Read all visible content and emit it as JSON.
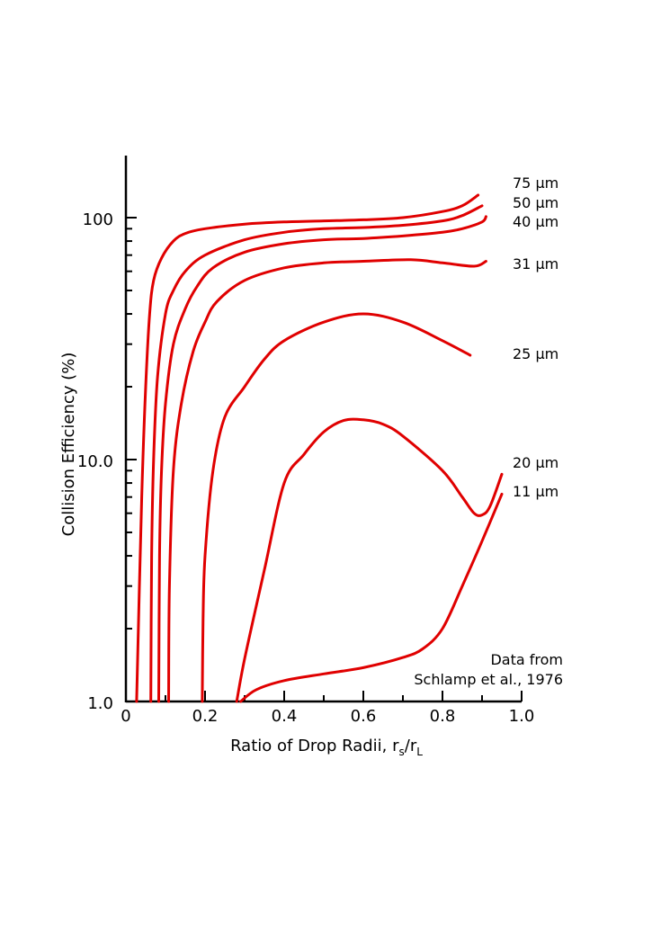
{
  "chart_data": {
    "type": "line",
    "xlabel_main": "Ratio of Drop Radii, r",
    "xlabel_sub_s": "s",
    "xlabel_slash": "/r",
    "xlabel_sub_L": "L",
    "ylabel": "Collision Efficiency (%)",
    "xlim": [
      0,
      1.0
    ],
    "ylim": [
      1.0,
      180
    ],
    "yscale": "log",
    "xticks": [
      "0",
      "0.2",
      "0.4",
      "0.6",
      "0.8",
      "1.0"
    ],
    "yticks": [
      "1.0",
      "10.0",
      "100"
    ],
    "line_color": "#e00000",
    "annotation_line1": "Data from",
    "annotation_line2": "Schlamp et al., 1976",
    "series": [
      {
        "name": "75 µm",
        "x": [
          0.027,
          0.04,
          0.05,
          0.06,
          0.07,
          0.09,
          0.12,
          0.15,
          0.2,
          0.3,
          0.4,
          0.5,
          0.6,
          0.7,
          0.8,
          0.85,
          0.89
        ],
        "y": [
          1.0,
          7,
          20,
          40,
          55,
          68,
          80,
          86,
          90,
          94,
          96,
          97,
          98,
          100,
          106,
          112,
          124
        ]
      },
      {
        "name": "50 µm",
        "x": [
          0.063,
          0.065,
          0.07,
          0.08,
          0.1,
          0.12,
          0.15,
          0.2,
          0.3,
          0.4,
          0.5,
          0.6,
          0.7,
          0.8,
          0.85,
          0.9
        ],
        "y": [
          1.0,
          4,
          10,
          22,
          40,
          50,
          60,
          70,
          81,
          87,
          90,
          91,
          93,
          97,
          102,
          112
        ]
      },
      {
        "name": "40 µm",
        "x": [
          0.083,
          0.085,
          0.09,
          0.1,
          0.12,
          0.15,
          0.18,
          0.22,
          0.3,
          0.4,
          0.5,
          0.6,
          0.7,
          0.8,
          0.85,
          0.9,
          0.91
        ],
        "y": [
          1.0,
          4,
          9,
          17,
          30,
          42,
          52,
          62,
          72,
          78,
          81,
          82,
          84,
          87,
          90,
          96,
          101
        ]
      },
      {
        "name": "31 µm",
        "x": [
          0.108,
          0.11,
          0.12,
          0.14,
          0.17,
          0.2,
          0.23,
          0.3,
          0.4,
          0.5,
          0.6,
          0.72,
          0.8,
          0.88,
          0.91
        ],
        "y": [
          1.0,
          3,
          9,
          17,
          28,
          37,
          45,
          55,
          62,
          65,
          66,
          67,
          65,
          63,
          66
        ]
      },
      {
        "name": "25 µm",
        "x": [
          0.193,
          0.195,
          0.2,
          0.22,
          0.25,
          0.3,
          0.35,
          0.4,
          0.5,
          0.6,
          0.7,
          0.8,
          0.87
        ],
        "y": [
          1.0,
          2.2,
          4,
          9,
          15,
          20,
          26,
          31,
          37,
          40,
          37,
          31,
          27
        ]
      },
      {
        "name": "20 µm",
        "x": [
          0.28,
          0.3,
          0.35,
          0.4,
          0.45,
          0.5,
          0.55,
          0.6,
          0.65,
          0.7,
          0.8,
          0.85,
          0.88,
          0.9,
          0.92,
          0.95
        ],
        "y": [
          1.0,
          1.5,
          3.5,
          8,
          10.5,
          13,
          14.5,
          14.6,
          14,
          12.5,
          9,
          7,
          6,
          5.9,
          6.4,
          8.7
        ]
      },
      {
        "name": "11 µm",
        "x": [
          0.29,
          0.33,
          0.4,
          0.5,
          0.6,
          0.7,
          0.75,
          0.8,
          0.85,
          0.9,
          0.95
        ],
        "y": [
          1.0,
          1.12,
          1.22,
          1.3,
          1.38,
          1.52,
          1.65,
          2.0,
          3.0,
          4.6,
          7.2
        ]
      }
    ]
  }
}
